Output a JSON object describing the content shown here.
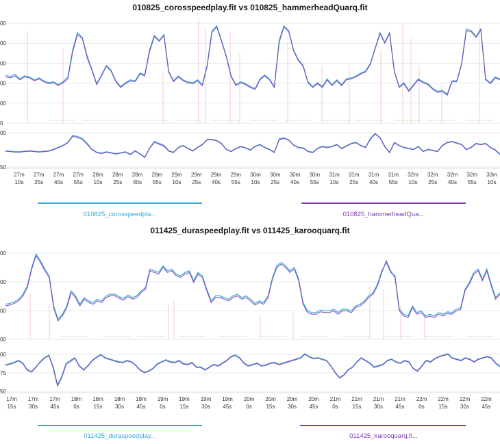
{
  "chart_data": [
    {
      "type": "line",
      "title": "010825_corosspeedplay.fit vs 010825_hammerheadQuarq.fit",
      "xlabel": "",
      "ylabel": "",
      "x_ticks": [
        [
          "27m",
          "10s"
        ],
        [
          "27m",
          "25s"
        ],
        [
          "27m",
          "40s"
        ],
        [
          "27m",
          "55s"
        ],
        [
          "28m",
          "10s"
        ],
        [
          "28m",
          "25s"
        ],
        [
          "28m",
          "40s"
        ],
        [
          "28m",
          "55s"
        ],
        [
          "29m",
          "10s"
        ],
        [
          "29m",
          "25s"
        ],
        [
          "29m",
          "40s"
        ],
        [
          "29m",
          "55s"
        ],
        [
          "30m",
          "10s"
        ],
        [
          "30m",
          "25s"
        ],
        [
          "30m",
          "40s"
        ],
        [
          "30m",
          "55s"
        ],
        [
          "31m",
          "10s"
        ],
        [
          "31m",
          "25s"
        ],
        [
          "31m",
          "40s"
        ],
        [
          "31m",
          "55s"
        ],
        [
          "32m",
          "10s"
        ],
        [
          "32m",
          "25s"
        ],
        [
          "32m",
          "40s"
        ],
        [
          "32m",
          "55s"
        ],
        [
          "33m",
          "10s"
        ]
      ],
      "legend_placement": "bottom",
      "series": [
        {
          "name": "010825_corosspeedpla...",
          "color": "#33aadd"
        },
        {
          "name": "010825_hammerheadQua...",
          "color": "#7b3fb3"
        }
      ],
      "top_panel": {
        "y_tick_labels": [
          "00",
          "00",
          "00",
          "00",
          "00",
          "0"
        ],
        "y_min": 0,
        "y_max": 540,
        "series_a": [
          250,
          240,
          255,
          230,
          245,
          240,
          225,
          235,
          220,
          210,
          215,
          200,
          215,
          240,
          380,
          470,
          445,
          350,
          280,
          205,
          250,
          300,
          275,
          220,
          190,
          210,
          225,
          220,
          260,
          250,
          380,
          455,
          430,
          460,
          270,
          220,
          245,
          225,
          215,
          210,
          225,
          200,
          300,
          480,
          505,
          430,
          350,
          245,
          200,
          215,
          205,
          190,
          180,
          230,
          250,
          230,
          190,
          430,
          505,
          480,
          380,
          330,
          300,
          215,
          190,
          210,
          190,
          230,
          200,
          225,
          200,
          230,
          235,
          245,
          260,
          270,
          310,
          390,
          470,
          420,
          470,
          270,
          190,
          210,
          170,
          200,
          230,
          215,
          205,
          180,
          165,
          170,
          150,
          220,
          220,
          310,
          490,
          480,
          450,
          490,
          230,
          210,
          240,
          230
        ],
        "series_b": [
          240,
          235,
          245,
          225,
          240,
          235,
          220,
          230,
          215,
          205,
          210,
          195,
          210,
          230,
          370,
          460,
          440,
          340,
          275,
          200,
          245,
          295,
          270,
          215,
          185,
          205,
          220,
          215,
          255,
          245,
          370,
          450,
          425,
          455,
          265,
          215,
          240,
          220,
          210,
          205,
          220,
          195,
          295,
          470,
          500,
          425,
          345,
          240,
          195,
          210,
          200,
          185,
          175,
          225,
          245,
          225,
          185,
          420,
          500,
          475,
          375,
          325,
          295,
          210,
          185,
          205,
          185,
          225,
          195,
          220,
          195,
          225,
          230,
          240,
          255,
          265,
          305,
          385,
          465,
          415,
          465,
          265,
          185,
          205,
          165,
          195,
          225,
          210,
          200,
          175,
          160,
          165,
          145,
          215,
          215,
          305,
          480,
          475,
          445,
          485,
          225,
          205,
          235,
          225
        ],
        "spikes": [
          [
            40,
            480
          ],
          [
            92,
            390
          ],
          [
            238,
            260
          ],
          [
            290,
            540
          ],
          [
            300,
            500
          ],
          [
            336,
            480
          ],
          [
            350,
            360
          ],
          [
            420,
            420
          ],
          [
            470,
            300
          ],
          [
            510,
            300
          ],
          [
            556,
            380
          ],
          [
            588,
            520
          ],
          [
            600,
            440
          ],
          [
            612,
            300
          ],
          [
            645,
            200
          ],
          [
            700,
            520
          ]
        ],
        "dashes": [
          70,
          120,
          160,
          205,
          255,
          310,
          365,
          415,
          470,
          520,
          575,
          625,
          680
        ]
      },
      "bottom_panel": {
        "y_tick_labels": [
          "00",
          "50"
        ],
        "y_min": 40,
        "y_max": 115,
        "series_a": [
          73,
          72,
          71,
          71,
          72,
          73,
          72,
          71,
          72,
          73,
          76,
          80,
          84,
          90,
          104,
          102,
          98,
          88,
          76,
          70,
          68,
          71,
          69,
          67,
          69,
          71,
          66,
          73,
          67,
          60,
          78,
          92,
          88,
          84,
          73,
          70,
          80,
          84,
          78,
          73,
          80,
          86,
          96,
          96,
          94,
          88,
          76,
          72,
          78,
          82,
          79,
          75,
          82,
          86,
          80,
          76,
          70,
          97,
          99,
          95,
          85,
          80,
          79,
          72,
          70,
          78,
          82,
          80,
          82,
          86,
          78,
          83,
          88,
          90,
          84,
          80,
          98,
          108,
          100,
          82,
          70,
          90,
          84,
          80,
          78,
          76,
          82,
          72,
          76,
          74,
          72,
          84,
          90,
          92,
          89,
          86,
          76,
          80,
          88,
          86,
          88,
          80,
          75,
          66
        ],
        "series_b": [
          72,
          71,
          70,
          70,
          71,
          72,
          71,
          70,
          71,
          72,
          75,
          79,
          83,
          89,
          102,
          100,
          96,
          86,
          75,
          69,
          67,
          70,
          68,
          66,
          68,
          70,
          65,
          72,
          66,
          59,
          77,
          90,
          86,
          82,
          72,
          69,
          79,
          83,
          77,
          72,
          79,
          85,
          95,
          95,
          93,
          87,
          75,
          71,
          77,
          81,
          78,
          74,
          81,
          85,
          79,
          75,
          69,
          95,
          98,
          94,
          84,
          79,
          78,
          71,
          69,
          77,
          81,
          79,
          81,
          85,
          77,
          82,
          87,
          89,
          83,
          79,
          96,
          107,
          99,
          81,
          69,
          89,
          83,
          79,
          77,
          75,
          81,
          71,
          75,
          73,
          71,
          83,
          89,
          91,
          88,
          85,
          75,
          79,
          87,
          85,
          87,
          79,
          74,
          65
        ]
      }
    },
    {
      "type": "line",
      "title": "011425_duraspeedplay.fit vs 011425_karooquarq.fit",
      "xlabel": "",
      "ylabel": "",
      "x_ticks": [
        [
          "17m",
          "15s"
        ],
        [
          "17m",
          "30s"
        ],
        [
          "17m",
          "45s"
        ],
        [
          "18m",
          "0s"
        ],
        [
          "18m",
          "15s"
        ],
        [
          "18m",
          "30s"
        ],
        [
          "18m",
          "45s"
        ],
        [
          "19m",
          "0s"
        ],
        [
          "19m",
          "15s"
        ],
        [
          "19m",
          "30s"
        ],
        [
          "19m",
          "45s"
        ],
        [
          "20m",
          "0s"
        ],
        [
          "20m",
          "15s"
        ],
        [
          "20m",
          "30s"
        ],
        [
          "20m",
          "45s"
        ],
        [
          "21m",
          "0s"
        ],
        [
          "21m",
          "15s"
        ],
        [
          "21m",
          "30s"
        ],
        [
          "21m",
          "45s"
        ],
        [
          "22m",
          "0s"
        ],
        [
          "22m",
          "15s"
        ],
        [
          "22m",
          "30s"
        ],
        [
          "22m",
          "45s"
        ]
      ],
      "legend_placement": "bottom",
      "series": [
        {
          "name": "011425_duraspeedplay...",
          "color": "#33aadd"
        },
        {
          "name": "011425_karooquarq.fi...",
          "color": "#7b3fb3"
        }
      ],
      "top_panel": {
        "y_tick_labels": [
          "00",
          "00",
          "00",
          "00"
        ],
        "y_min": 0,
        "y_max": 540,
        "series_a": [
          210,
          215,
          225,
          240,
          270,
          320,
          430,
          510,
          470,
          420,
          380,
          200,
          120,
          150,
          200,
          290,
          260,
          210,
          250,
          230,
          220,
          240,
          230,
          260,
          270,
          270,
          255,
          245,
          265,
          250,
          260,
          290,
          310,
          420,
          410,
          400,
          440,
          410,
          420,
          390,
          380,
          400,
          410,
          350,
          400,
          380,
          300,
          230,
          260,
          260,
          250,
          240,
          260,
          270,
          250,
          260,
          240,
          215,
          230,
          220,
          260,
          370,
          440,
          460,
          440,
          410,
          430,
          360,
          220,
          170,
          160,
          160,
          175,
          170,
          170,
          180,
          160,
          180,
          180,
          170,
          200,
          210,
          230,
          260,
          280,
          330,
          410,
          460,
          400,
          380,
          180,
          150,
          140,
          200,
          160,
          170,
          140,
          150,
          140,
          160,
          150,
          165,
          160,
          180,
          190,
          300,
          340,
          400,
          420,
          360,
          420,
          330,
          250,
          280
        ],
        "series_b": [
          200,
          205,
          215,
          230,
          260,
          310,
          420,
          500,
          460,
          410,
          370,
          190,
          110,
          140,
          190,
          280,
          250,
          200,
          240,
          220,
          210,
          230,
          220,
          250,
          260,
          260,
          245,
          235,
          255,
          240,
          250,
          280,
          300,
          410,
          400,
          390,
          430,
          400,
          410,
          380,
          370,
          390,
          400,
          340,
          390,
          370,
          290,
          220,
          250,
          250,
          240,
          230,
          250,
          260,
          240,
          250,
          230,
          205,
          220,
          210,
          250,
          360,
          430,
          450,
          430,
          400,
          420,
          350,
          210,
          160,
          150,
          150,
          165,
          160,
          160,
          170,
          150,
          170,
          170,
          160,
          190,
          200,
          220,
          250,
          270,
          320,
          400,
          470,
          410,
          370,
          170,
          140,
          130,
          190,
          150,
          160,
          130,
          140,
          130,
          150,
          140,
          155,
          150,
          170,
          180,
          290,
          330,
          390,
          410,
          350,
          410,
          320,
          240,
          270
        ],
        "spikes": [
          [
            44,
            280
          ],
          [
            72,
            200
          ],
          [
            246,
            210
          ],
          [
            254,
            240
          ],
          [
            380,
            140
          ],
          [
            428,
            160
          ],
          [
            540,
            320
          ],
          [
            560,
            300
          ],
          [
            585,
            200
          ],
          [
            620,
            150
          ]
        ],
        "dashes": [
          90,
          150,
          200,
          260,
          320,
          380,
          440,
          500,
          560,
          620,
          680
        ]
      },
      "bottom_panel": {
        "y_tick_labels": [
          "00",
          "75",
          "50"
        ],
        "y_min": 45,
        "y_max": 105,
        "series_a": [
          85,
          87,
          89,
          92,
          88,
          78,
          75,
          82,
          90,
          96,
          100,
          82,
          55,
          68,
          88,
          92,
          96,
          84,
          78,
          84,
          92,
          97,
          101,
          96,
          94,
          92,
          90,
          89,
          92,
          90,
          85,
          78,
          74,
          76,
          80,
          87,
          90,
          93,
          90,
          89,
          92,
          87,
          86,
          89,
          82,
          82,
          78,
          82,
          86,
          84,
          88,
          92,
          98,
          100,
          96,
          88,
          84,
          86,
          88,
          84,
          85,
          88,
          89,
          86,
          88,
          90,
          92,
          94,
          96,
          102,
          98,
          95,
          96,
          94,
          92,
          84,
          74,
          66,
          70,
          78,
          82,
          90,
          96,
          92,
          88,
          82,
          84,
          86,
          92,
          94,
          90,
          88,
          92,
          90,
          80,
          76,
          84,
          92,
          90,
          95,
          98,
          100,
          102,
          96,
          94,
          92,
          96,
          94,
          90,
          94,
          96,
          98,
          96,
          88,
          83
        ],
        "series_b": [
          84,
          86,
          88,
          91,
          87,
          77,
          74,
          81,
          89,
          95,
          99,
          80,
          53,
          66,
          86,
          90,
          95,
          83,
          77,
          83,
          91,
          96,
          100,
          95,
          93,
          91,
          89,
          88,
          91,
          89,
          84,
          77,
          73,
          75,
          79,
          86,
          89,
          92,
          89,
          88,
          91,
          86,
          85,
          88,
          81,
          81,
          77,
          81,
          85,
          83,
          87,
          91,
          97,
          99,
          95,
          87,
          83,
          85,
          87,
          83,
          84,
          87,
          88,
          85,
          87,
          89,
          91,
          93,
          95,
          101,
          97,
          94,
          95,
          93,
          91,
          83,
          73,
          65,
          69,
          77,
          81,
          89,
          95,
          91,
          87,
          81,
          83,
          85,
          91,
          93,
          89,
          87,
          91,
          89,
          79,
          75,
          83,
          91,
          89,
          94,
          97,
          99,
          101,
          95,
          93,
          91,
          95,
          93,
          89,
          93,
          95,
          97,
          95,
          87,
          82
        ]
      }
    }
  ]
}
